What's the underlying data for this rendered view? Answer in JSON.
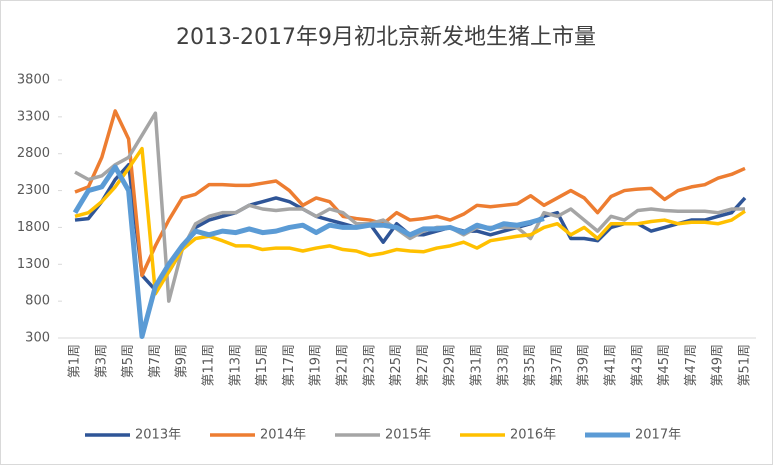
{
  "chart_data": {
    "type": "line",
    "title": "2013-2017年9月初北京新发地生猪上市量",
    "categories": [
      "第1周",
      null,
      "第3周",
      null,
      "第5周",
      null,
      "第7周",
      null,
      "第9周",
      null,
      "第11周",
      null,
      "第13周",
      null,
      "第15周",
      null,
      "第17周",
      null,
      "第19周",
      null,
      "第21周",
      null,
      "第23周",
      null,
      "第25周",
      null,
      "第27周",
      null,
      "第29周",
      null,
      "第31周",
      null,
      "第33周",
      null,
      "第35周",
      null,
      "第37周",
      null,
      "第39周",
      null,
      "第41周",
      null,
      "第43周",
      null,
      "第45周",
      null,
      "第47周",
      null,
      "第49周",
      null,
      "第51周"
    ],
    "series": [
      {
        "name": "2013年",
        "color": "#2f5597",
        "values": [
          1900,
          1920,
          2150,
          2450,
          2650,
          1150,
          950,
          1200,
          1500,
          1800,
          1900,
          1950,
          2000,
          2100,
          2150,
          2200,
          2150,
          2050,
          1950,
          1900,
          1850,
          1800,
          1850,
          1600,
          1850,
          1700,
          1700,
          1750,
          1800,
          1750,
          1750,
          1700,
          1750,
          1800,
          1850,
          1950,
          2000,
          1650,
          1650,
          1620,
          1800,
          1850,
          1850,
          1750,
          1800,
          1850,
          1900,
          1900,
          1950,
          2000,
          2200
        ]
      },
      {
        "name": "2014年",
        "color": "#ed7d31",
        "values": [
          2280,
          2350,
          2750,
          3380,
          3000,
          1150,
          1550,
          1900,
          2200,
          2250,
          2380,
          2380,
          2370,
          2370,
          2400,
          2430,
          2300,
          2100,
          2200,
          2150,
          1950,
          1920,
          1900,
          1850,
          2000,
          1900,
          1920,
          1950,
          1900,
          1980,
          2100,
          2080,
          2100,
          2120,
          2230,
          2100,
          2200,
          2300,
          2200,
          2000,
          2220,
          2300,
          2320,
          2330,
          2180,
          2300,
          2350,
          2380,
          2470,
          2520,
          2600
        ]
      },
      {
        "name": "2015年",
        "color": "#a5a5a5",
        "values": [
          2550,
          2450,
          2500,
          2650,
          2750,
          3050,
          3350,
          800,
          1500,
          1850,
          1950,
          2000,
          2000,
          2100,
          2050,
          2030,
          2050,
          2050,
          1950,
          2050,
          2000,
          1850,
          1850,
          1900,
          1780,
          1650,
          1750,
          1800,
          1800,
          1700,
          1800,
          1800,
          1800,
          1800,
          1650,
          2000,
          1950,
          2050,
          1900,
          1750,
          1950,
          1900,
          2030,
          2050,
          2030,
          2020,
          2020,
          2020,
          2000,
          2050,
          2050
        ]
      },
      {
        "name": "2016年",
        "color": "#ffc000",
        "values": [
          1950,
          2000,
          2150,
          2350,
          2600,
          2870,
          900,
          1200,
          1500,
          1650,
          1680,
          1620,
          1550,
          1550,
          1500,
          1520,
          1520,
          1480,
          1520,
          1550,
          1500,
          1480,
          1420,
          1450,
          1500,
          1480,
          1470,
          1520,
          1550,
          1600,
          1520,
          1620,
          1650,
          1680,
          1700,
          1800,
          1850,
          1700,
          1800,
          1650,
          1850,
          1850,
          1850,
          1880,
          1900,
          1850,
          1870,
          1870,
          1850,
          1900,
          2020
        ]
      },
      {
        "name": "2017年",
        "color": "#5b9bd5",
        "values": [
          2000,
          2300,
          2350,
          2620,
          2300,
          320,
          1000,
          1300,
          1550,
          1750,
          1700,
          1750,
          1730,
          1780,
          1730,
          1750,
          1800,
          1830,
          1730,
          1830,
          1800,
          1800,
          1830,
          1830,
          1800,
          1700,
          1780,
          1780,
          1800,
          1730,
          1830,
          1780,
          1850,
          1830,
          1870,
          1920,
          null,
          null,
          null,
          null,
          null,
          null,
          null,
          null,
          null,
          null,
          null,
          null,
          null,
          null,
          null
        ]
      }
    ],
    "ylim": [
      300,
      3800
    ],
    "yticks": [
      300,
      800,
      1300,
      1800,
      2300,
      2800,
      3300,
      3800
    ],
    "legend": "bottom"
  }
}
